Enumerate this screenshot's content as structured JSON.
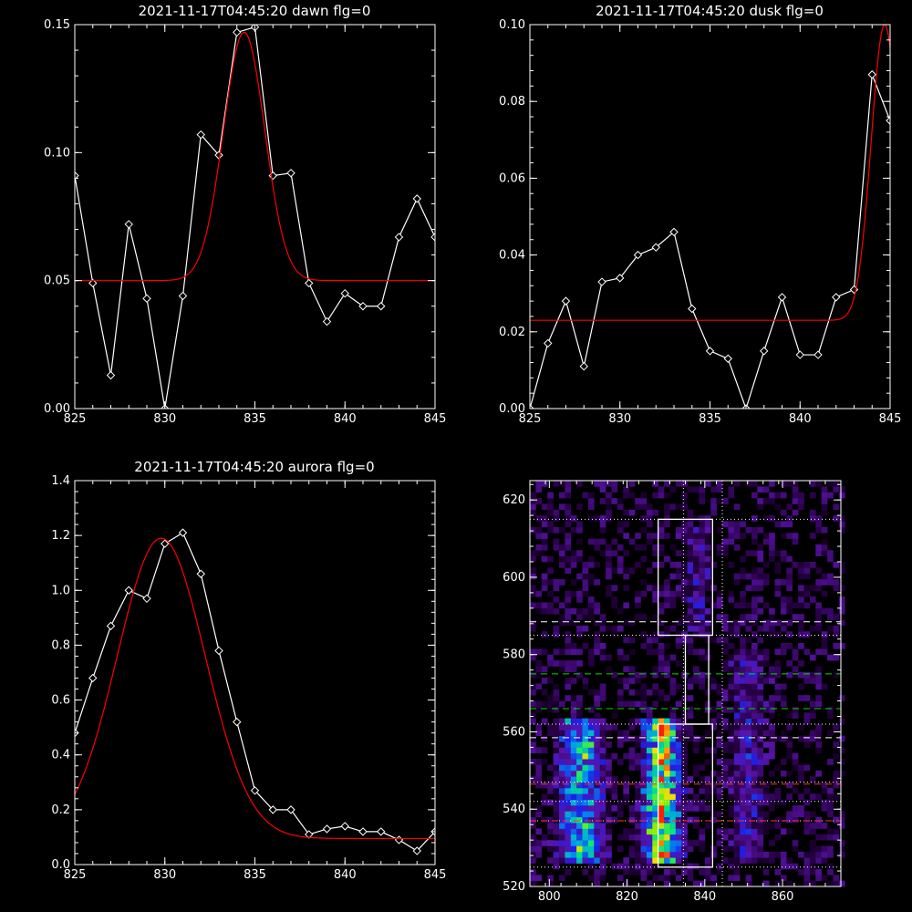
{
  "chart_data": [
    {
      "type": "line",
      "title": "2021-11-17T04:45:20 dawn flg=0",
      "xlim": [
        825,
        845
      ],
      "ylim": [
        0,
        0.15
      ],
      "xticks": [
        "825",
        "830",
        "835",
        "840",
        "845"
      ],
      "yticks": [
        "0.00",
        "0.05",
        "0.10",
        "0.15"
      ],
      "series": [
        {
          "color": "#ffffff",
          "marker": "diamond",
          "x": [
            825,
            826,
            827,
            828,
            829,
            830,
            831,
            832,
            833,
            834,
            835,
            836,
            837,
            838,
            839,
            840,
            841,
            842,
            843,
            844,
            845
          ],
          "y": [
            0.091,
            0.049,
            0.013,
            0.072,
            0.043,
            0.0,
            0.044,
            0.107,
            0.099,
            0.147,
            0.149,
            0.091,
            0.092,
            0.049,
            0.034,
            0.045,
            0.04,
            0.04,
            0.067,
            0.082,
            0.067
          ]
        },
        {
          "color": "#ff0000",
          "gaussian": {
            "base": 0.05,
            "amp": 0.097,
            "center": 834.4,
            "sigma": 1.15
          }
        }
      ]
    },
    {
      "type": "line",
      "title": "2021-11-17T04:45:20 dusk flg=0",
      "xlim": [
        825,
        845
      ],
      "ylim": [
        0,
        0.1
      ],
      "xticks": [
        "825",
        "830",
        "835",
        "840",
        "845"
      ],
      "yticks": [
        "0.00",
        "0.02",
        "0.04",
        "0.06",
        "0.08",
        "0.10"
      ],
      "series": [
        {
          "color": "#ffffff",
          "marker": "diamond",
          "x": [
            825,
            826,
            827,
            828,
            829,
            830,
            831,
            832,
            833,
            834,
            835,
            836,
            837,
            838,
            839,
            840,
            841,
            842,
            843,
            844,
            845
          ],
          "y": [
            0.0,
            0.017,
            0.028,
            0.011,
            0.033,
            0.034,
            0.04,
            0.042,
            0.046,
            0.026,
            0.015,
            0.013,
            0.0,
            0.015,
            0.029,
            0.014,
            0.014,
            0.029,
            0.031,
            0.087,
            0.075
          ]
        },
        {
          "color": "#ff0000",
          "gaussian": {
            "base": 0.023,
            "amp": 0.077,
            "center": 844.7,
            "sigma": 0.75
          }
        }
      ]
    },
    {
      "type": "line",
      "title": "2021-11-17T04:45:20 aurora flg=0",
      "xlim": [
        825,
        845
      ],
      "ylim": [
        0,
        1.4
      ],
      "xticks": [
        "825",
        "830",
        "835",
        "840",
        "845"
      ],
      "yticks": [
        "0.0",
        "0.2",
        "0.4",
        "0.6",
        "0.8",
        "1.0",
        "1.2",
        "1.4"
      ],
      "series": [
        {
          "color": "#ffffff",
          "marker": "diamond",
          "x": [
            825,
            826,
            827,
            828,
            829,
            830,
            831,
            832,
            833,
            834,
            835,
            836,
            837,
            838,
            839,
            840,
            841,
            842,
            843,
            844,
            845
          ],
          "y": [
            0.48,
            0.68,
            0.87,
            1.0,
            0.97,
            1.17,
            1.21,
            1.06,
            0.78,
            0.52,
            0.27,
            0.2,
            0.2,
            0.11,
            0.13,
            0.14,
            0.12,
            0.12,
            0.09,
            0.05,
            0.12
          ]
        },
        {
          "color": "#ff0000",
          "gaussian": {
            "base": 0.095,
            "amp": 1.095,
            "center": 829.8,
            "sigma": 2.45
          }
        }
      ]
    },
    {
      "type": "heatmap",
      "title": "",
      "xlim": [
        795,
        875
      ],
      "ylim": [
        520,
        625
      ],
      "xticks": [
        "800",
        "820",
        "840",
        "860"
      ],
      "yticks": [
        "520",
        "540",
        "560",
        "580",
        "600",
        "620"
      ],
      "bright_columns": [
        {
          "center": 808,
          "width": 3.5,
          "ymin": 525,
          "ymax": 562,
          "level": 0.6
        },
        {
          "center": 829,
          "width": 3.0,
          "ymin": 525,
          "ymax": 563,
          "level": 0.9
        },
        {
          "center": 851,
          "width": 3.0,
          "ymin": 525,
          "ymax": 580,
          "level": 0.22
        },
        {
          "center": 838,
          "width": 2.5,
          "ymin": 585,
          "ymax": 612,
          "level": 0.18
        }
      ],
      "boxes": [
        {
          "x": [
            828,
            842
          ],
          "y": [
            525,
            562
          ],
          "color": "#ffffff"
        },
        {
          "x": [
            835,
            841
          ],
          "y": [
            562,
            585
          ],
          "color": "#ffffff"
        },
        {
          "x": [
            828,
            842
          ],
          "y": [
            585,
            615
          ],
          "color": "#ffffff"
        }
      ],
      "vlines_dotted": [
        834.5,
        844.5
      ],
      "hlines_dotted_white": [
        525,
        537,
        542,
        547,
        562,
        585,
        615
      ],
      "hlines_dashed": [
        {
          "y": 588.5,
          "color": "#ffffff"
        },
        {
          "y": 575,
          "color": "#00dd00"
        },
        {
          "y": 566,
          "color": "#00dd00"
        },
        {
          "y": 558.5,
          "color": "#ffffff"
        },
        {
          "y": 546.5,
          "color": "#ff3030"
        },
        {
          "y": 537,
          "color": "#ff3030"
        }
      ]
    }
  ]
}
